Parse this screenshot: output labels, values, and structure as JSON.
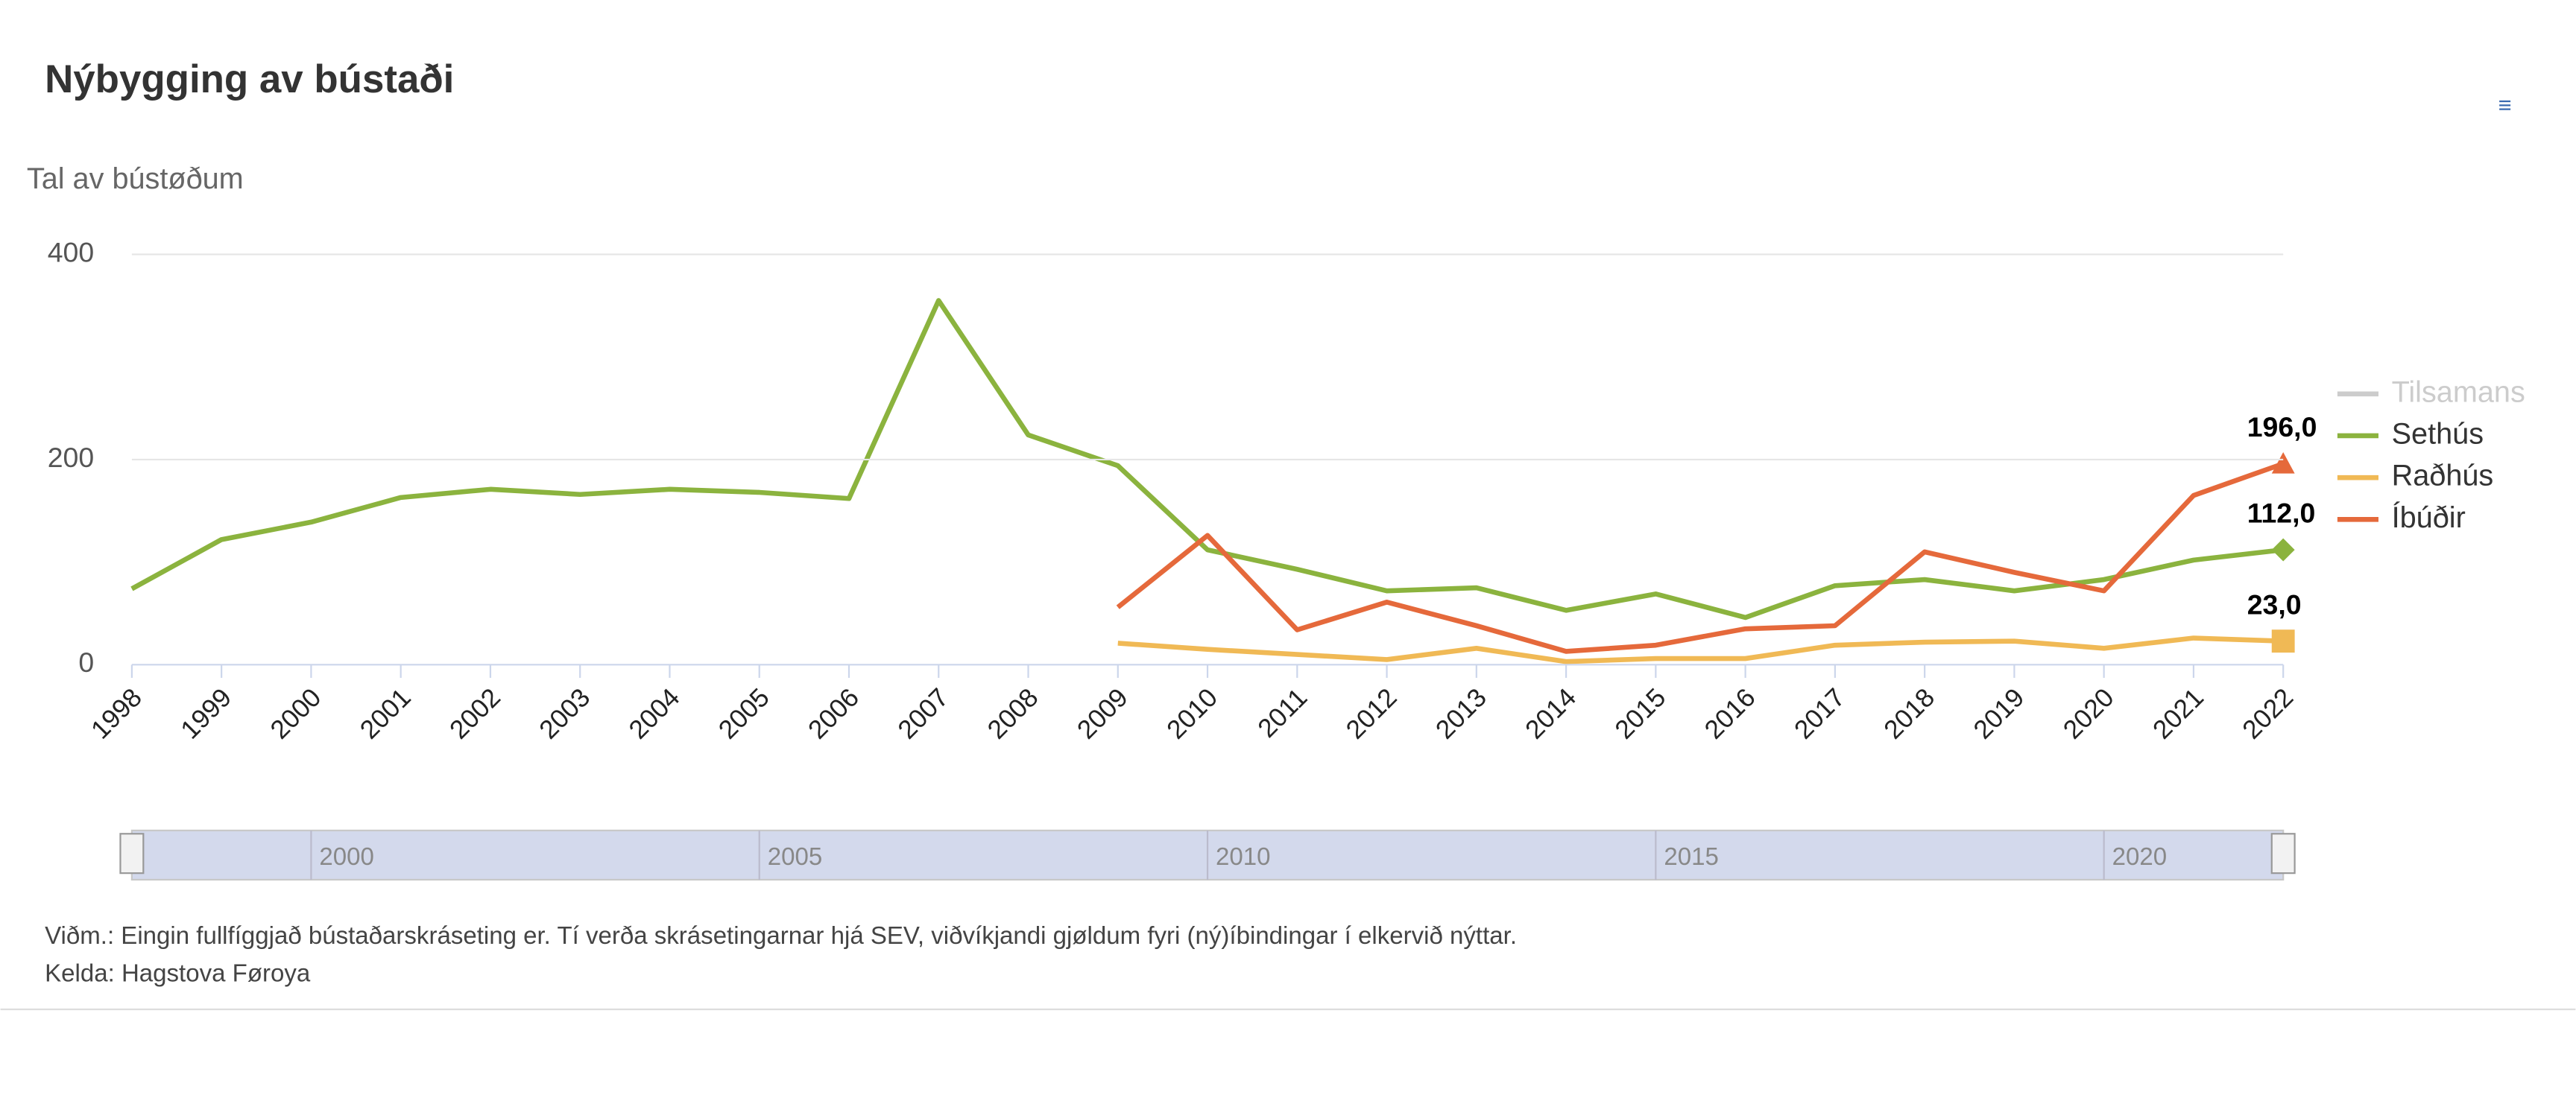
{
  "chart_data": {
    "type": "line",
    "title": "Nýbygging av bústaði",
    "y_label": "Tal av bústøðum",
    "menu": "≡",
    "x": [
      1998,
      1999,
      2000,
      2001,
      2002,
      2003,
      2004,
      2005,
      2006,
      2007,
      2008,
      2009,
      2010,
      2011,
      2012,
      2013,
      2014,
      2015,
      2016,
      2017,
      2018,
      2019,
      2020,
      2021,
      2022
    ],
    "xlim": [
      1998,
      2022
    ],
    "ylim": [
      0,
      400
    ],
    "yticks": [
      0,
      200,
      400
    ],
    "grid": true,
    "legend": "right",
    "series": [
      {
        "name": "Tilsamans",
        "color": "#cccccc",
        "visible": false,
        "values": [
          null,
          null,
          null,
          null,
          null,
          null,
          null,
          null,
          null,
          null,
          null,
          null,
          null,
          null,
          null,
          null,
          null,
          null,
          null,
          null,
          null,
          null,
          null,
          null,
          null
        ]
      },
      {
        "name": "Sethús",
        "color": "#8bb33e",
        "marker": "diamond",
        "values": [
          74,
          122,
          139,
          163,
          171,
          166,
          171,
          168,
          162,
          355,
          224,
          194,
          112,
          93,
          72,
          75,
          53,
          69,
          46,
          77,
          83,
          72,
          83,
          102,
          112
        ],
        "value_labels": [
          null,
          null,
          null,
          null,
          null,
          null,
          null,
          null,
          null,
          null,
          null,
          null,
          null,
          null,
          null,
          null,
          null,
          null,
          null,
          null,
          null,
          null,
          null,
          null,
          "112,0"
        ]
      },
      {
        "name": "Raðhús",
        "color": "#f0b955",
        "marker": "square",
        "values": [
          null,
          null,
          null,
          null,
          null,
          null,
          null,
          null,
          null,
          null,
          null,
          21,
          15,
          10,
          5,
          16,
          3,
          6,
          6,
          19,
          22,
          23,
          16,
          26,
          23
        ],
        "value_labels": [
          null,
          null,
          null,
          null,
          null,
          null,
          null,
          null,
          null,
          null,
          null,
          null,
          null,
          null,
          null,
          null,
          null,
          null,
          null,
          null,
          null,
          null,
          null,
          null,
          "23,0"
        ]
      },
      {
        "name": "Íbúðir",
        "color": "#e5693b",
        "marker": "triangle",
        "values": [
          null,
          null,
          null,
          null,
          null,
          null,
          null,
          null,
          null,
          null,
          null,
          56,
          126,
          34,
          61,
          38,
          13,
          19,
          35,
          38,
          110,
          90,
          72,
          165,
          196
        ],
        "value_labels": [
          null,
          null,
          null,
          null,
          null,
          null,
          null,
          null,
          null,
          null,
          null,
          null,
          null,
          null,
          null,
          null,
          null,
          null,
          null,
          null,
          null,
          null,
          null,
          null,
          "196,0"
        ]
      }
    ],
    "navigator": {
      "xticks": [
        2000,
        2005,
        2010,
        2015,
        2020
      ]
    },
    "note": "Viðm.: Eingin fullfíggjað bústaðarskráseting er. Tí verða skrásetingarnar hjá SEV, viðvíkjandi gjøldum fyri (ný)íbindingar í elkervið nýttar.",
    "source": "Kelda: Hagstova Føroya"
  }
}
